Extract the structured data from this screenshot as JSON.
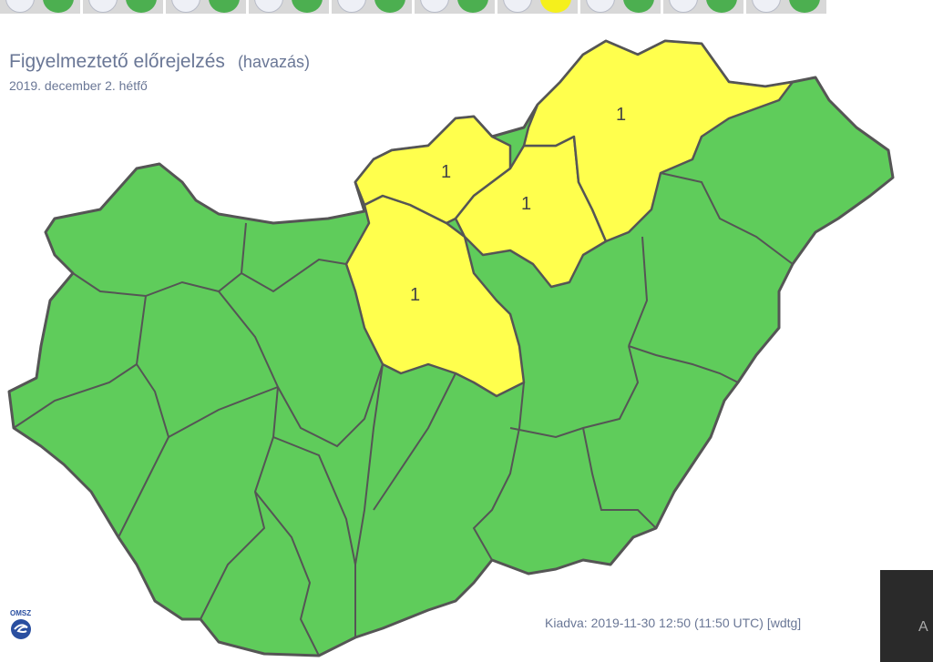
{
  "toolbar": {
    "groups": [
      {
        "icon": "wind-icon",
        "level_color": "#4caf50"
      },
      {
        "icon": "thunderstorm-icon",
        "level_color": "#4caf50"
      },
      {
        "icon": "rain-icon",
        "level_color": "#4caf50"
      },
      {
        "icon": "gust-icon",
        "level_color": "#4caf50"
      },
      {
        "icon": "freezing-rain-icon",
        "level_color": "#4caf50"
      },
      {
        "icon": "snowdrift-icon",
        "level_color": "#4caf50"
      },
      {
        "icon": "snow-icon",
        "level_color": "#f5f01c"
      },
      {
        "icon": "fog-icon",
        "level_color": "#4caf50"
      },
      {
        "icon": "cold-icon",
        "level_color": "#4caf50"
      },
      {
        "icon": "heat-icon",
        "level_color": "#4caf50"
      }
    ]
  },
  "header": {
    "title": "Figyelmeztető előrejelzés",
    "subtitle": "(havazás)",
    "date": "2019. december 2. hétfő"
  },
  "map": {
    "colors": {
      "level0": "#5fcc5b",
      "level1": "#ffff4d",
      "border": "#555555"
    },
    "warnings": [
      {
        "label": "1"
      },
      {
        "label": "1"
      },
      {
        "label": "1"
      },
      {
        "label": "1"
      }
    ]
  },
  "logo": {
    "text": "OMSZ"
  },
  "footer": {
    "issued": "Kiadva: 2019-11-30 12:50 (11:50 UTC) [wdtg]"
  },
  "overlay": {
    "letter": "A"
  }
}
